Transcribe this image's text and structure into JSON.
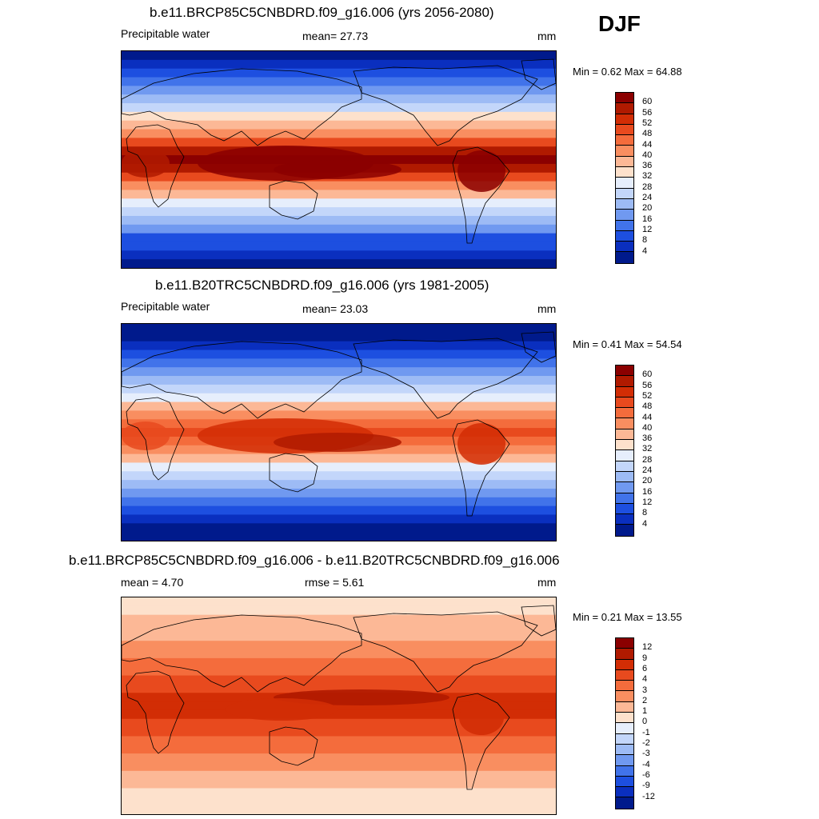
{
  "season": "DJF",
  "panels": [
    {
      "title": "b.e11.BRCP85C5CNBDRD.f09_g16.006 (yrs 2056-2080)",
      "left_label": "Precipitable water",
      "center_label": "mean=  27.73",
      "units": "mm",
      "minmax": "Min =   0.62 Max =  64.88",
      "intensity": 1.15
    },
    {
      "title": "b.e11.B20TRC5CNBDRD.f09_g16.006 (yrs 1981-2005)",
      "left_label": "Precipitable water",
      "center_label": "mean=  23.03",
      "units": "mm",
      "minmax": "Min =   0.41 Max =  54.54",
      "intensity": 0.95
    },
    {
      "title": "b.e11.BRCP85C5CNBDRD.f09_g16.006 - b.e11.B20TRC5CNBDRD.f09_g16.006",
      "left_label": "mean =   4.70",
      "center_label": "rmse =   5.61",
      "units": "mm",
      "minmax": "Min =   0.21 Max =  13.55"
    }
  ],
  "colorbar_abs": {
    "labels": [
      "60",
      "56",
      "52",
      "48",
      "44",
      "40",
      "36",
      "32",
      "28",
      "24",
      "20",
      "16",
      "12",
      "8",
      "4"
    ],
    "colors": [
      "#8b0000",
      "#b01a00",
      "#d22d05",
      "#e84a1e",
      "#f46c3c",
      "#f98e60",
      "#fcb896",
      "#fde1cc",
      "#e6eefc",
      "#c3d6fa",
      "#9dbbf5",
      "#7099f0",
      "#4173ea",
      "#1d4fe0",
      "#0a2fbf",
      "#001a8c"
    ]
  },
  "colorbar_diff": {
    "labels": [
      "12",
      "9",
      "6",
      "4",
      "3",
      "2",
      "1",
      "0",
      "-1",
      "-2",
      "-3",
      "-4",
      "-6",
      "-9",
      "-12"
    ],
    "colors": [
      "#8b0000",
      "#b01a00",
      "#d22d05",
      "#e84a1e",
      "#f46c3c",
      "#f98e60",
      "#fcb896",
      "#fde1cc",
      "#e6eefc",
      "#c3d6fa",
      "#9dbbf5",
      "#7099f0",
      "#4173ea",
      "#1d4fe0",
      "#0a2fbf",
      "#001a8c"
    ]
  }
}
